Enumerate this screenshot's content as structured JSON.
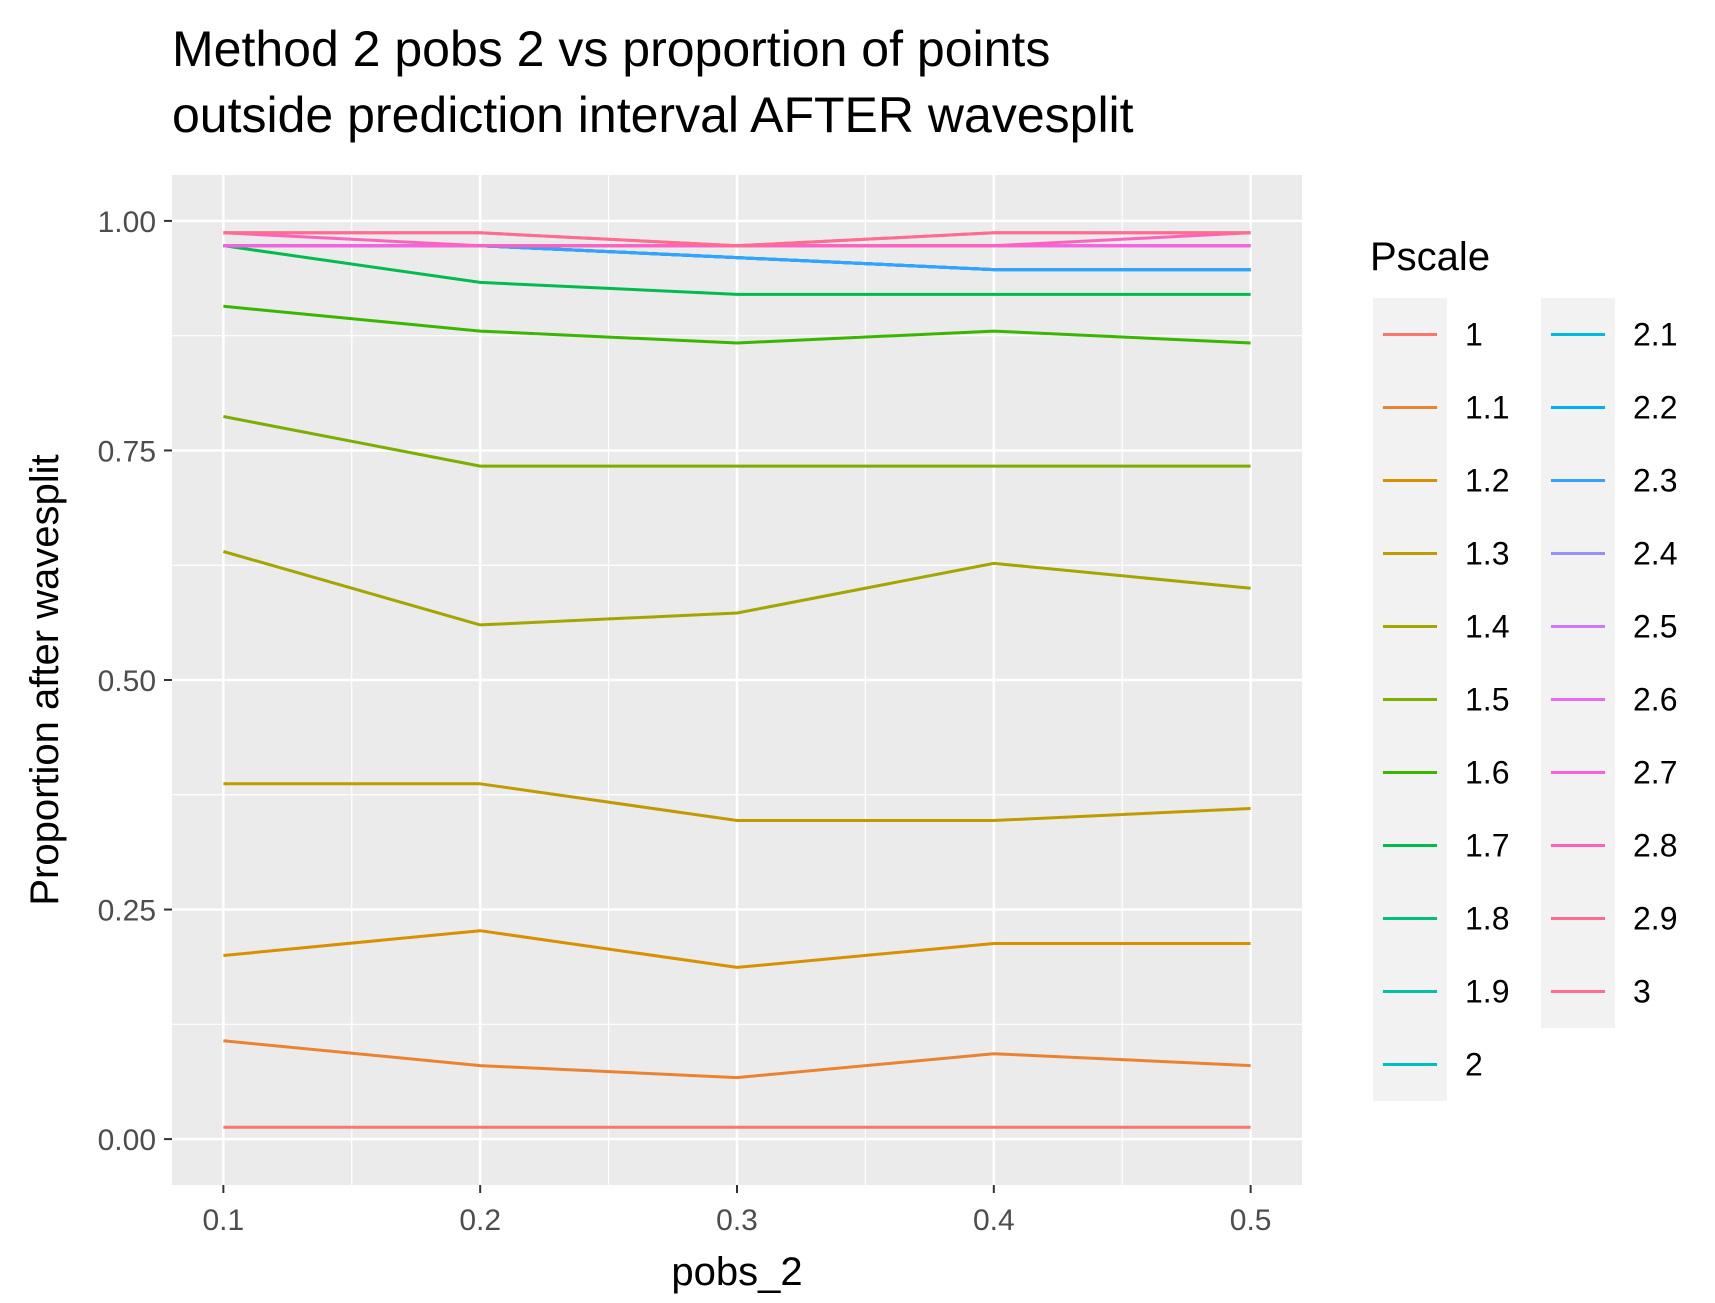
{
  "chart_data": {
    "type": "line",
    "title": [
      "Method 2 pobs 2 vs proportion of points",
      "outside prediction interval AFTER wavesplit"
    ],
    "xlabel": "pobs_2",
    "ylabel": "Proportion after wavesplit",
    "x": [
      0.1,
      0.2,
      0.3,
      0.4,
      0.5
    ],
    "x_tick_labels": [
      "0.1",
      "0.2",
      "0.3",
      "0.4",
      "0.5"
    ],
    "xlim": [
      0.08,
      0.52
    ],
    "y_ticks": [
      0.0,
      0.25,
      0.5,
      0.75,
      1.0
    ],
    "y_tick_labels": [
      "0.00",
      "0.25",
      "0.50",
      "0.75",
      "1.00"
    ],
    "ylim": [
      -0.05,
      1.05
    ],
    "grid": true,
    "legend": {
      "title": "Pscale",
      "position": "right",
      "columns": 2
    },
    "series": [
      {
        "name": "1",
        "color": "#F8766D",
        "values": [
          0.013,
          0.013,
          0.013,
          0.013,
          0.013
        ]
      },
      {
        "name": "1.1",
        "color": "#EA8331",
        "values": [
          0.107,
          0.08,
          0.067,
          0.093,
          0.08
        ]
      },
      {
        "name": "1.2",
        "color": "#D89000",
        "values": [
          0.2,
          0.227,
          0.187,
          0.213,
          0.213
        ]
      },
      {
        "name": "1.3",
        "color": "#C09B00",
        "values": [
          0.387,
          0.387,
          0.347,
          0.347,
          0.36
        ]
      },
      {
        "name": "1.4",
        "color": "#A3A500",
        "values": [
          0.64,
          0.56,
          0.573,
          0.627,
          0.6
        ]
      },
      {
        "name": "1.5",
        "color": "#7CAE00",
        "values": [
          0.787,
          0.733,
          0.733,
          0.733,
          0.733
        ]
      },
      {
        "name": "1.6",
        "color": "#39B600",
        "values": [
          0.907,
          0.88,
          0.867,
          0.88,
          0.867
        ]
      },
      {
        "name": "1.7",
        "color": "#00BB4E",
        "values": [
          0.973,
          0.933,
          0.92,
          0.92,
          0.92
        ]
      },
      {
        "name": "1.8",
        "color": "#00BF7D",
        "values": [
          0.973,
          0.973,
          0.96,
          0.947,
          0.947
        ]
      },
      {
        "name": "1.9",
        "color": "#00C1A3",
        "values": [
          0.973,
          0.973,
          0.96,
          0.947,
          0.947
        ]
      },
      {
        "name": "2",
        "color": "#00BFC4",
        "values": [
          0.973,
          0.973,
          0.96,
          0.947,
          0.947
        ]
      },
      {
        "name": "2.1",
        "color": "#00BAE0",
        "values": [
          0.973,
          0.973,
          0.96,
          0.947,
          0.947
        ]
      },
      {
        "name": "2.2",
        "color": "#00B0F6",
        "values": [
          0.973,
          0.973,
          0.96,
          0.947,
          0.947
        ]
      },
      {
        "name": "2.3",
        "color": "#35A2FF",
        "values": [
          0.973,
          0.973,
          0.96,
          0.947,
          0.947
        ]
      },
      {
        "name": "2.4",
        "color": "#9590FF",
        "values": [
          0.973,
          0.973,
          0.973,
          0.973,
          0.973
        ]
      },
      {
        "name": "2.5",
        "color": "#C77CFF",
        "values": [
          0.973,
          0.973,
          0.973,
          0.973,
          0.973
        ]
      },
      {
        "name": "2.6",
        "color": "#E76BF3",
        "values": [
          0.973,
          0.973,
          0.973,
          0.973,
          0.973
        ]
      },
      {
        "name": "2.7",
        "color": "#FA62DB",
        "values": [
          0.973,
          0.973,
          0.973,
          0.973,
          0.973
        ]
      },
      {
        "name": "2.8",
        "color": "#FF62BC",
        "values": [
          0.987,
          0.973,
          0.973,
          0.973,
          0.987
        ]
      },
      {
        "name": "2.9",
        "color": "#FF6C91",
        "values": [
          0.987,
          0.987,
          0.973,
          0.987,
          0.987
        ]
      },
      {
        "name": "3",
        "color": "#FF6C91",
        "values": [
          0.987,
          0.987,
          0.973,
          0.987,
          0.987
        ]
      }
    ]
  }
}
